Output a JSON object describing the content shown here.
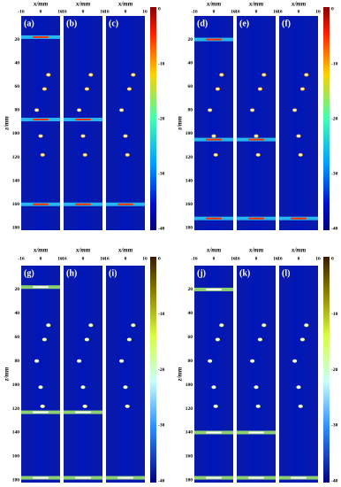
{
  "figure": {
    "groups": [
      {
        "z_label": "z/mm",
        "z_ticks": [
          "20",
          "40",
          "60",
          "80",
          "100",
          "120",
          "140",
          "160",
          "180"
        ],
        "colorbar_ticks": [
          "0",
          "-10",
          "-20",
          "-30",
          "-40"
        ],
        "panels": [
          {
            "label": "(a)",
            "x_label": "x/mm",
            "x_ticks": [
              "-16",
              "0",
              "16"
            ]
          },
          {
            "label": "(b)",
            "x_label": "x/mm",
            "x_ticks": [
              "-16",
              "0",
              "16"
            ]
          },
          {
            "label": "(c)",
            "x_label": "x/mm",
            "x_ticks": [
              "-16",
              "0",
              "16"
            ]
          }
        ]
      },
      {
        "z_label": "z/mm",
        "z_ticks": [
          "20",
          "40",
          "60",
          "80",
          "100",
          "120",
          "140",
          "160",
          "180"
        ],
        "colorbar_ticks": [
          "0",
          "-10",
          "-20",
          "-30",
          "-40"
        ],
        "panels": [
          {
            "label": "(d)",
            "x_label": "x/mm",
            "x_ticks": [
              "-16",
              "0",
              "16"
            ]
          },
          {
            "label": "(e)",
            "x_label": "x/mm",
            "x_ticks": [
              "-16",
              "0",
              "16"
            ]
          },
          {
            "label": "(f)",
            "x_label": "x/mm",
            "x_ticks": [
              "-16",
              "0",
              "16"
            ]
          }
        ]
      },
      {
        "z_label": "z/mm",
        "z_ticks": [
          "20",
          "40",
          "60",
          "80",
          "100",
          "120",
          "140",
          "160",
          "180"
        ],
        "colorbar_ticks": [
          "0",
          "-10",
          "-20",
          "-30",
          "-40"
        ],
        "panels": [
          {
            "label": "(g)",
            "x_label": "x/mm",
            "x_ticks": [
              "-16",
              "0",
              "16"
            ]
          },
          {
            "label": "(h)",
            "x_label": "x/mm",
            "x_ticks": [
              "-16",
              "0",
              "16"
            ]
          },
          {
            "label": "(i)",
            "x_label": "x/mm",
            "x_ticks": [
              "-16",
              "0",
              "16"
            ]
          }
        ]
      },
      {
        "z_label": "z/mm",
        "z_ticks": [
          "20",
          "40",
          "60",
          "80",
          "100",
          "120",
          "140",
          "160",
          "180"
        ],
        "colorbar_ticks": [
          "0",
          "-10",
          "-20",
          "-30",
          "-40"
        ],
        "panels": [
          {
            "label": "(j)",
            "x_label": "x/mm",
            "x_ticks": [
              "-16",
              "0",
              "16"
            ]
          },
          {
            "label": "(k)",
            "x_label": "x/mm",
            "x_ticks": [
              "-16",
              "0",
              "16"
            ]
          },
          {
            "label": "(l)",
            "x_label": "x/mm",
            "x_ticks": [
              "-16",
              "0",
              "16"
            ]
          }
        ]
      }
    ]
  }
}
